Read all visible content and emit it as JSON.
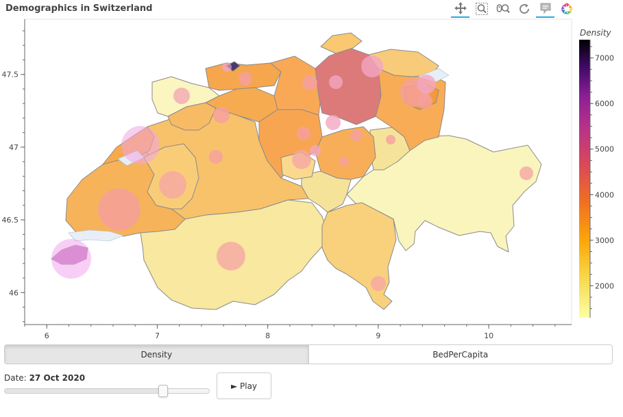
{
  "title": "Demographics in Switzerland",
  "toolbar": [
    {
      "name": "pan-tool",
      "icon": "pan-icon",
      "active": true
    },
    {
      "name": "box-zoom-tool",
      "icon": "box-zoom-icon",
      "active": false
    },
    {
      "name": "wheel-zoom-tool",
      "icon": "wheel-zoom-icon",
      "active": false
    },
    {
      "name": "reset-tool",
      "icon": "reset-icon",
      "active": false
    },
    {
      "name": "hover-tool",
      "icon": "hover-icon",
      "active": true
    },
    {
      "name": "bokeh-logo",
      "icon": "bokeh-logo-icon",
      "active": false
    }
  ],
  "map": {
    "x_ticks": [
      "6",
      "7",
      "8",
      "9",
      "10"
    ],
    "y_ticks": [
      "46",
      "46.5",
      "47",
      "47.5"
    ],
    "x_range": [
      5.8,
      10.75
    ],
    "y_range": [
      45.78,
      47.88
    ]
  },
  "colorbar": {
    "title": "Density",
    "ticks": [
      "2000",
      "3000",
      "4000",
      "5000",
      "6000",
      "7000"
    ],
    "range": [
      1300,
      7400
    ]
  },
  "tabs": [
    {
      "label": "Density",
      "active": true
    },
    {
      "label": "BedPerCapita",
      "active": false
    }
  ],
  "date": {
    "label": "Date:",
    "value": "27 Oct 2020",
    "slider_fraction": 0.77
  },
  "play_button": {
    "label": "► Play"
  }
}
